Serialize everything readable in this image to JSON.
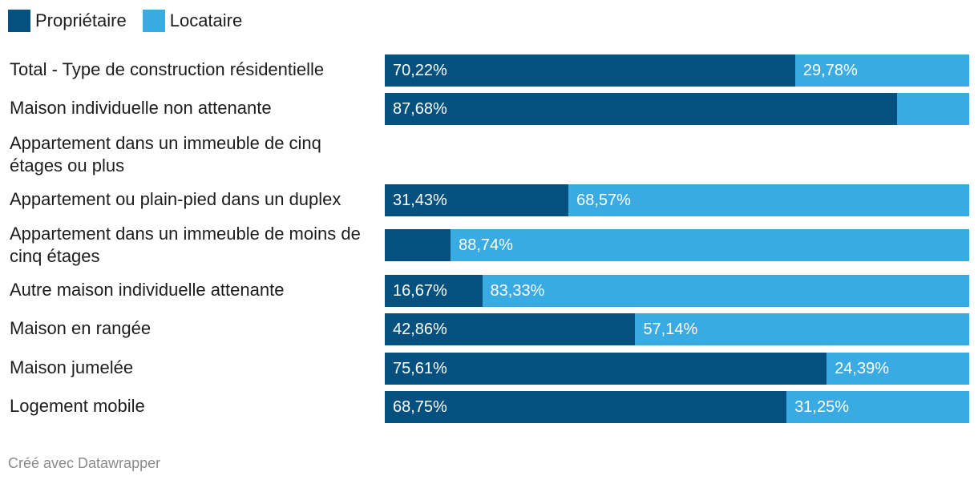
{
  "colors": {
    "owner": "#04507f",
    "renter": "#3aabe2"
  },
  "credit": "Créé avec Datawrapper",
  "chart_data": {
    "type": "bar",
    "stacked": true,
    "orientation": "horizontal",
    "legend": "top-left",
    "xlim": [
      0,
      100
    ],
    "series": [
      {
        "name": "Propriétaire",
        "color": "#04507f"
      },
      {
        "name": "Locataire",
        "color": "#3aabe2"
      }
    ],
    "rows": [
      {
        "label": "Total - Type de construction résidentielle",
        "owner": 70.22,
        "renter": 29.78,
        "owner_label": "70,22%",
        "renter_label": "29,78%"
      },
      {
        "label": "Maison individuelle non attenante",
        "owner": 87.68,
        "renter": 12.32,
        "owner_label": "87,68%",
        "renter_label": ""
      },
      {
        "label": "Appartement dans un immeuble de cinq étages ou plus",
        "owner": 0,
        "renter": 0,
        "owner_label": "",
        "renter_label": ""
      },
      {
        "label": "Appartement ou plain-pied dans un duplex",
        "owner": 31.43,
        "renter": 68.57,
        "owner_label": "31,43%",
        "renter_label": "68,57%"
      },
      {
        "label": "Appartement dans un immeuble de moins de cinq étages",
        "owner": 11.26,
        "renter": 88.74,
        "owner_label": "",
        "renter_label": "88,74%"
      },
      {
        "label": "Autre maison individuelle attenante",
        "owner": 16.67,
        "renter": 83.33,
        "owner_label": "16,67%",
        "renter_label": "83,33%"
      },
      {
        "label": "Maison en rangée",
        "owner": 42.86,
        "renter": 57.14,
        "owner_label": "42,86%",
        "renter_label": "57,14%"
      },
      {
        "label": "Maison jumelée",
        "owner": 75.61,
        "renter": 24.39,
        "owner_label": "75,61%",
        "renter_label": "24,39%"
      },
      {
        "label": "Logement mobile",
        "owner": 68.75,
        "renter": 31.25,
        "owner_label": "68,75%",
        "renter_label": "31,25%"
      }
    ]
  }
}
